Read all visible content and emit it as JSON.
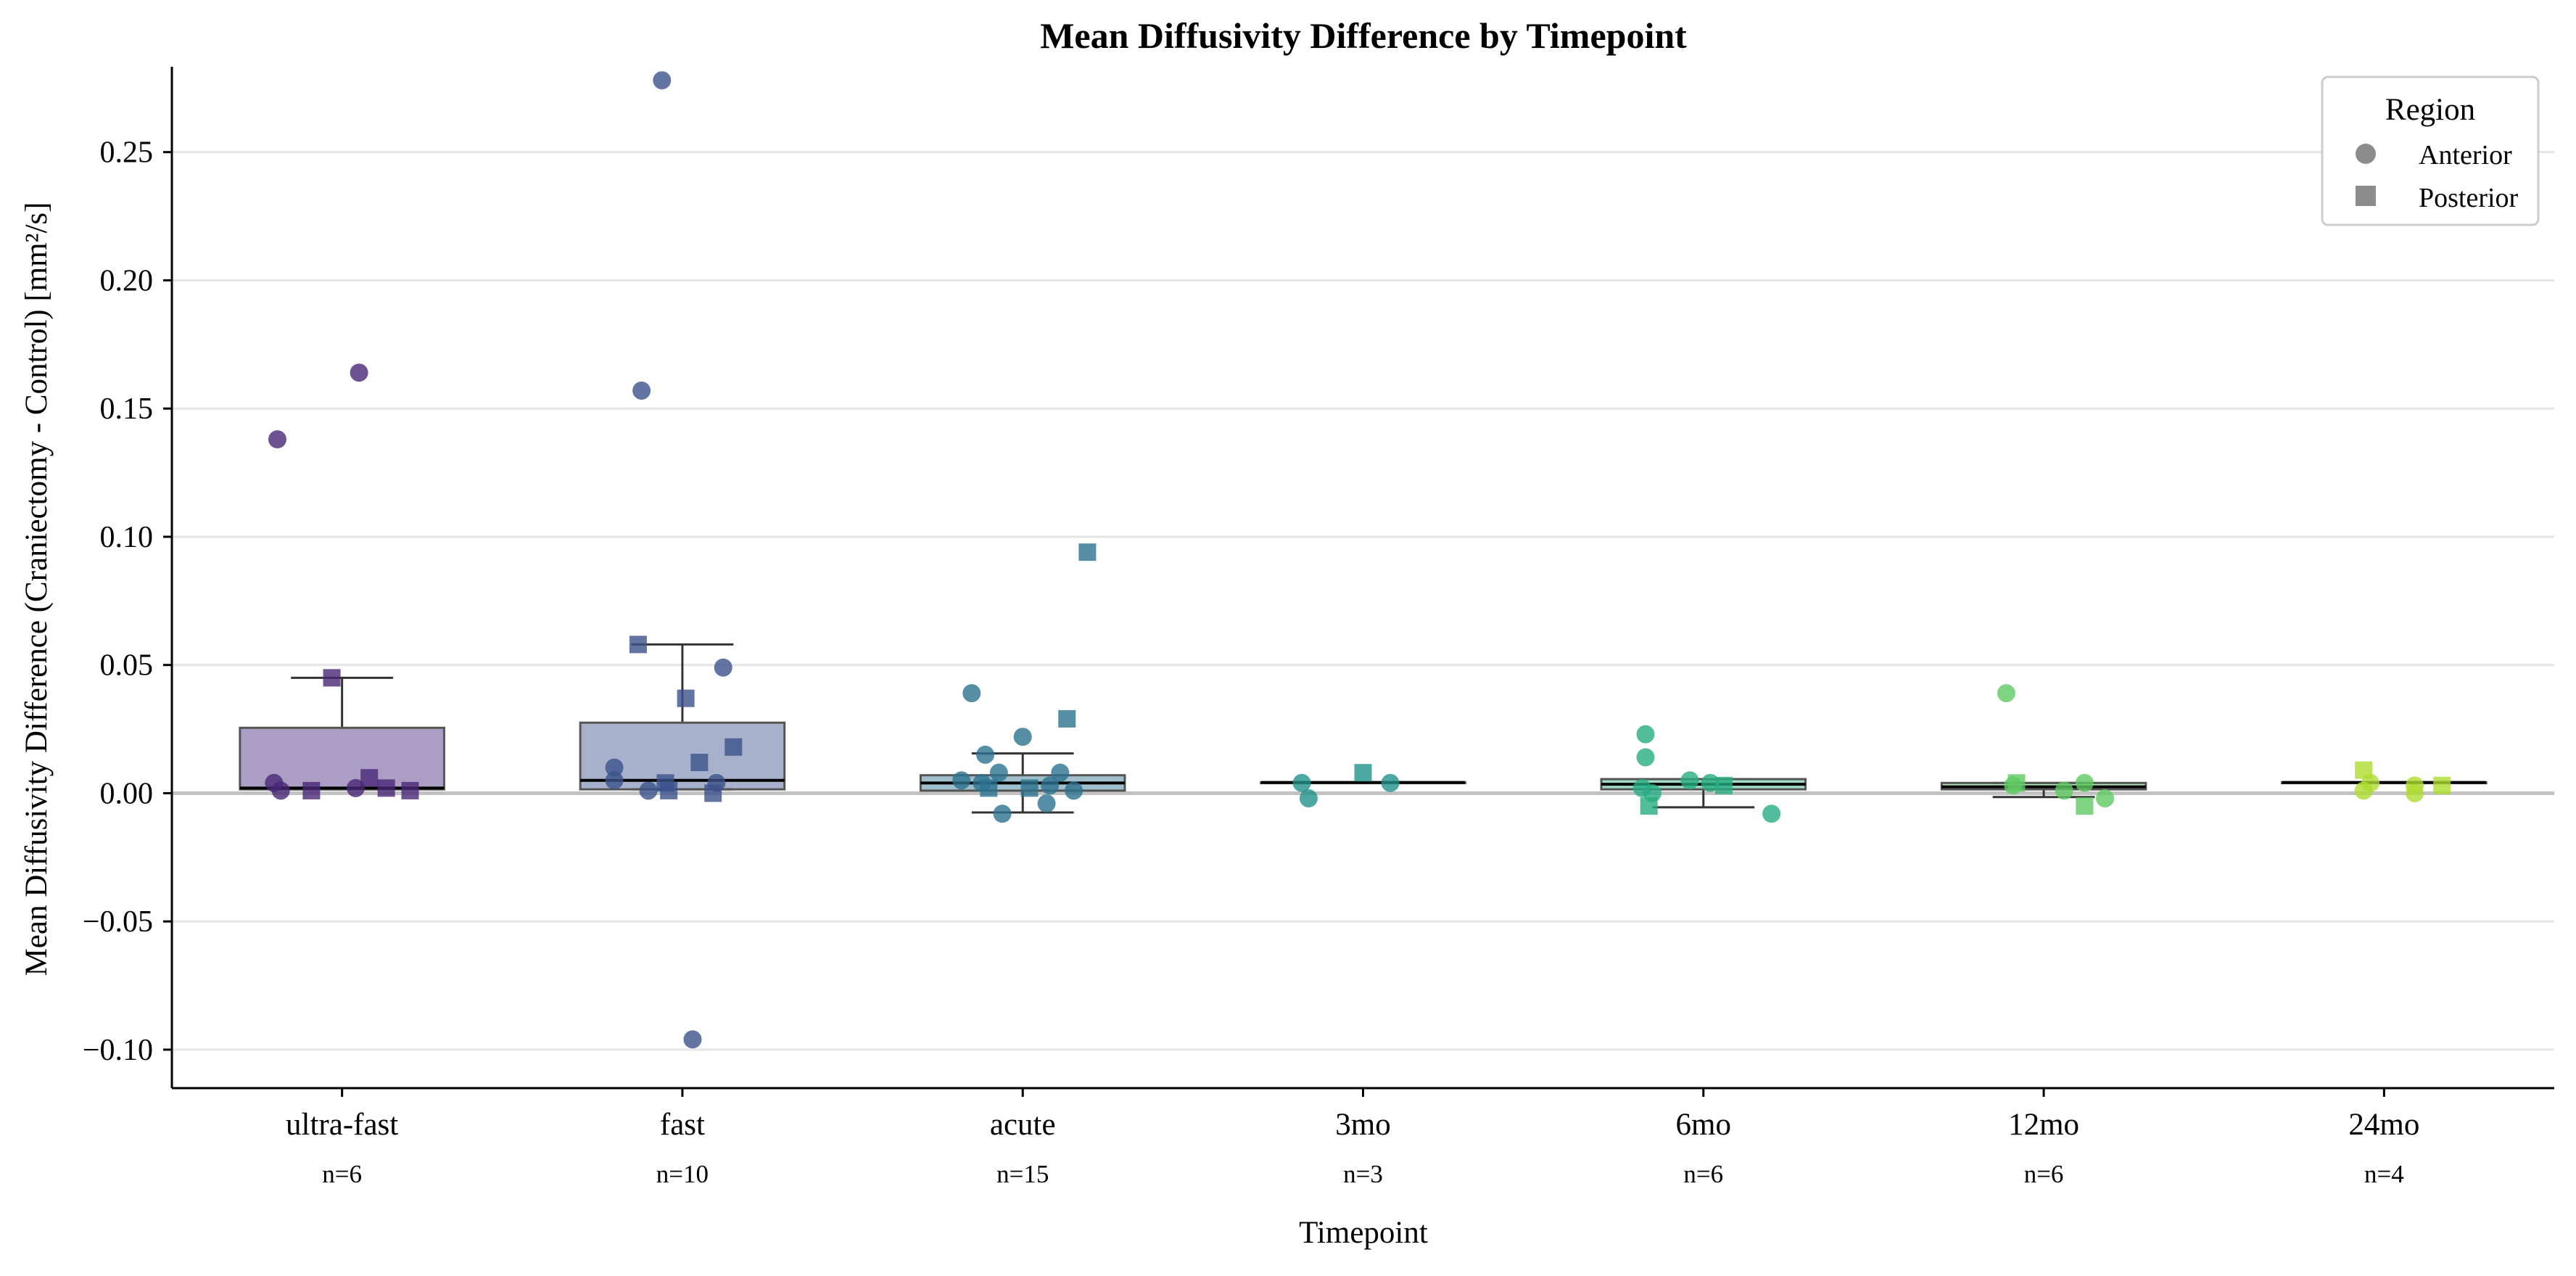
{
  "chart_data": {
    "type": "box",
    "title": "Mean Diffusivity Difference by Timepoint",
    "xlabel": "Timepoint",
    "ylabel": "Mean Diffusivity Difference (Craniectomy - Control) [mm²/s]",
    "ylim": [
      -0.115,
      0.298
    ],
    "yticks": [
      -0.1,
      -0.05,
      0.0,
      0.05,
      0.1,
      0.15,
      0.2,
      0.25
    ],
    "ytick_labels": [
      "−0.10",
      "−0.05",
      "0.00",
      "0.05",
      "0.10",
      "0.15",
      "0.20",
      "0.25"
    ],
    "grid": "horizontal",
    "zero_line": true,
    "legend": {
      "title": "Region",
      "placement": "top-right",
      "entries": [
        {
          "label": "Anterior",
          "marker": "circle"
        },
        {
          "label": "Posterior",
          "marker": "square"
        }
      ]
    },
    "categories": [
      "ultra-fast",
      "fast",
      "acute",
      "3mo",
      "6mo",
      "12mo",
      "24mo"
    ],
    "counts": [
      "n=6",
      "n=10",
      "n=15",
      "n=3",
      "n=6",
      "n=6",
      "n=4"
    ],
    "colors": [
      "#482777",
      "#3b528b",
      "#2c728e",
      "#21918c",
      "#27ad81",
      "#5ec962",
      "#addc30"
    ],
    "boxes": [
      {
        "q1": 0.0015,
        "median": 0.002,
        "q3": 0.0255,
        "whisker_low": 0.0015,
        "whisker_high": 0.045
      },
      {
        "q1": 0.0015,
        "median": 0.005,
        "q3": 0.0275,
        "whisker_low": 0.0015,
        "whisker_high": 0.058
      },
      {
        "q1": 0.001,
        "median": 0.004,
        "q3": 0.007,
        "whisker_low": -0.0075,
        "whisker_high": 0.0155
      },
      {
        "q1": 0.0042,
        "median": 0.0042,
        "q3": 0.0042,
        "whisker_low": 0.0042,
        "whisker_high": 0.0042
      },
      {
        "q1": 0.0015,
        "median": 0.0035,
        "q3": 0.0055,
        "whisker_low": -0.0055,
        "whisker_high": 0.0055
      },
      {
        "q1": 0.0015,
        "median": 0.0025,
        "q3": 0.004,
        "whisker_low": -0.0015,
        "whisker_high": 0.004
      },
      {
        "q1": 0.0042,
        "median": 0.0042,
        "q3": 0.0042,
        "whisker_low": 0.0042,
        "whisker_high": 0.0042
      }
    ],
    "points": [
      [
        {
          "dx": -0.19,
          "y": 0.138,
          "shape": "circle"
        },
        {
          "dx": 0.05,
          "y": 0.164,
          "shape": "circle"
        },
        {
          "dx": -0.2,
          "y": 0.004,
          "shape": "circle"
        },
        {
          "dx": -0.18,
          "y": 0.001,
          "shape": "circle"
        },
        {
          "dx": 0.04,
          "y": 0.002,
          "shape": "circle"
        },
        {
          "dx": -0.03,
          "y": 0.045,
          "shape": "square"
        },
        {
          "dx": -0.09,
          "y": 0.001,
          "shape": "square"
        },
        {
          "dx": 0.08,
          "y": 0.006,
          "shape": "square"
        },
        {
          "dx": 0.13,
          "y": 0.002,
          "shape": "square"
        },
        {
          "dx": 0.2,
          "y": 0.001,
          "shape": "square"
        }
      ],
      [
        {
          "dx": -0.06,
          "y": 0.278,
          "shape": "circle"
        },
        {
          "dx": -0.12,
          "y": 0.157,
          "shape": "circle"
        },
        {
          "dx": 0.03,
          "y": -0.096,
          "shape": "circle"
        },
        {
          "dx": 0.12,
          "y": 0.049,
          "shape": "circle"
        },
        {
          "dx": -0.2,
          "y": 0.01,
          "shape": "circle"
        },
        {
          "dx": -0.2,
          "y": 0.005,
          "shape": "circle"
        },
        {
          "dx": -0.1,
          "y": 0.001,
          "shape": "circle"
        },
        {
          "dx": 0.1,
          "y": 0.004,
          "shape": "circle"
        },
        {
          "dx": -0.13,
          "y": 0.058,
          "shape": "square"
        },
        {
          "dx": 0.01,
          "y": 0.037,
          "shape": "square"
        },
        {
          "dx": 0.15,
          "y": 0.018,
          "shape": "square"
        },
        {
          "dx": 0.05,
          "y": 0.012,
          "shape": "square"
        },
        {
          "dx": -0.05,
          "y": 0.004,
          "shape": "square"
        },
        {
          "dx": -0.04,
          "y": 0.001,
          "shape": "square"
        },
        {
          "dx": 0.09,
          "y": 0.0,
          "shape": "square"
        }
      ],
      [
        {
          "dx": -0.15,
          "y": 0.039,
          "shape": "circle"
        },
        {
          "dx": 0.0,
          "y": 0.022,
          "shape": "circle"
        },
        {
          "dx": -0.11,
          "y": 0.015,
          "shape": "circle"
        },
        {
          "dx": -0.07,
          "y": 0.008,
          "shape": "circle"
        },
        {
          "dx": 0.11,
          "y": 0.008,
          "shape": "circle"
        },
        {
          "dx": -0.18,
          "y": 0.005,
          "shape": "circle"
        },
        {
          "dx": -0.12,
          "y": 0.004,
          "shape": "circle"
        },
        {
          "dx": 0.08,
          "y": 0.003,
          "shape": "circle"
        },
        {
          "dx": 0.15,
          "y": 0.001,
          "shape": "circle"
        },
        {
          "dx": -0.06,
          "y": -0.008,
          "shape": "circle"
        },
        {
          "dx": 0.07,
          "y": -0.004,
          "shape": "circle"
        },
        {
          "dx": 0.19,
          "y": 0.094,
          "shape": "square"
        },
        {
          "dx": 0.13,
          "y": 0.029,
          "shape": "square"
        },
        {
          "dx": -0.1,
          "y": 0.002,
          "shape": "square"
        },
        {
          "dx": 0.02,
          "y": 0.002,
          "shape": "square"
        }
      ],
      [
        {
          "dx": -0.18,
          "y": 0.004,
          "shape": "circle"
        },
        {
          "dx": -0.16,
          "y": -0.002,
          "shape": "circle"
        },
        {
          "dx": 0.08,
          "y": 0.004,
          "shape": "circle"
        },
        {
          "dx": 0.0,
          "y": 0.008,
          "shape": "square"
        }
      ],
      [
        {
          "dx": -0.17,
          "y": 0.023,
          "shape": "circle"
        },
        {
          "dx": -0.17,
          "y": 0.014,
          "shape": "circle"
        },
        {
          "dx": -0.04,
          "y": 0.005,
          "shape": "circle"
        },
        {
          "dx": 0.02,
          "y": 0.004,
          "shape": "circle"
        },
        {
          "dx": -0.18,
          "y": 0.002,
          "shape": "circle"
        },
        {
          "dx": -0.15,
          "y": 0.0,
          "shape": "circle"
        },
        {
          "dx": 0.2,
          "y": -0.008,
          "shape": "circle"
        },
        {
          "dx": -0.16,
          "y": -0.005,
          "shape": "square"
        },
        {
          "dx": 0.06,
          "y": 0.003,
          "shape": "square"
        }
      ],
      [
        {
          "dx": -0.11,
          "y": 0.039,
          "shape": "circle"
        },
        {
          "dx": -0.09,
          "y": 0.003,
          "shape": "circle"
        },
        {
          "dx": 0.12,
          "y": 0.004,
          "shape": "circle"
        },
        {
          "dx": 0.06,
          "y": 0.001,
          "shape": "circle"
        },
        {
          "dx": 0.18,
          "y": -0.002,
          "shape": "circle"
        },
        {
          "dx": -0.08,
          "y": 0.004,
          "shape": "square"
        },
        {
          "dx": 0.12,
          "y": -0.005,
          "shape": "square"
        }
      ],
      [
        {
          "dx": -0.04,
          "y": 0.004,
          "shape": "circle"
        },
        {
          "dx": -0.06,
          "y": 0.001,
          "shape": "circle"
        },
        {
          "dx": 0.09,
          "y": 0.003,
          "shape": "circle"
        },
        {
          "dx": 0.09,
          "y": 0.0,
          "shape": "circle"
        },
        {
          "dx": -0.06,
          "y": 0.009,
          "shape": "square"
        },
        {
          "dx": 0.17,
          "y": 0.003,
          "shape": "square"
        }
      ]
    ]
  }
}
